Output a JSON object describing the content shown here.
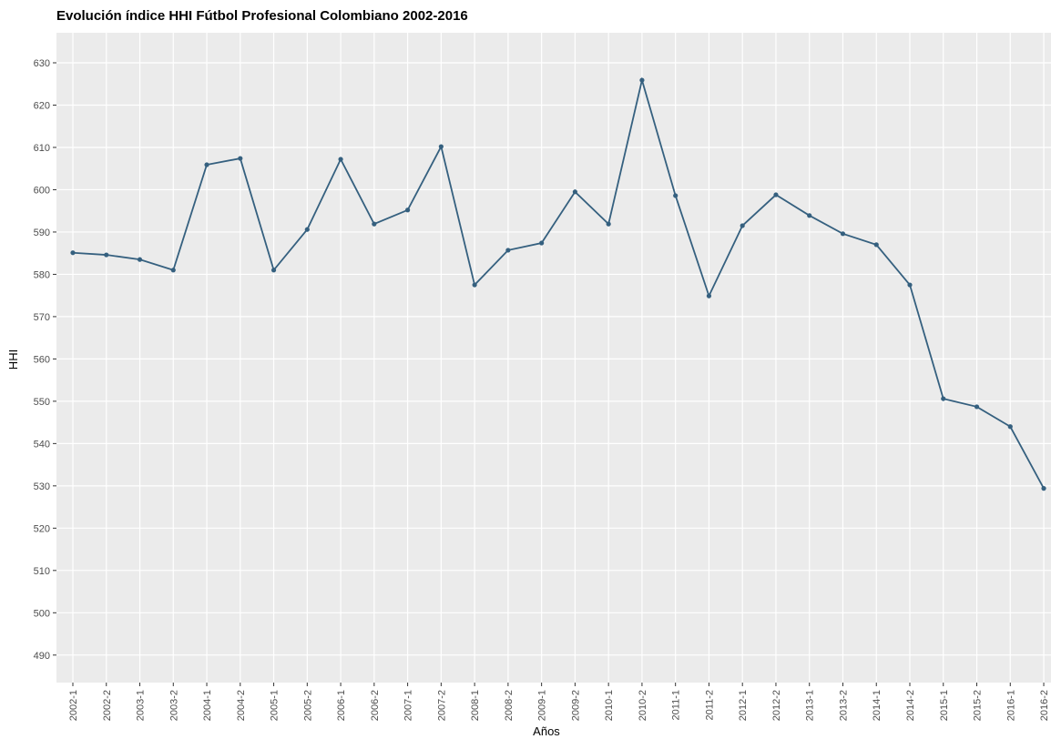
{
  "chart_data": {
    "type": "line",
    "title": "Evolución índice HHI Fútbol Profesional Colombiano 2002-2016",
    "x_label": "Años",
    "y_label": "HHI",
    "categories": [
      "2002-1",
      "2002-2",
      "2003-1",
      "2003-2",
      "2004-1",
      "2004-2",
      "2005-1",
      "2005-2",
      "2006-1",
      "2006-2",
      "2007-1",
      "2007-2",
      "2008-1",
      "2008-2",
      "2009-1",
      "2009-2",
      "2010-1",
      "2010-2",
      "2011-1",
      "2011-2",
      "2012-1",
      "2012-2",
      "2013-1",
      "2013-2",
      "2014-1",
      "2014-2",
      "2015-1",
      "2015-2",
      "2016-1",
      "2016-2"
    ],
    "series": [
      {
        "name": "HHI",
        "color": "#35607f",
        "values": [
          585.1,
          584.6,
          583.5,
          581,
          605.9,
          607.4,
          581,
          590.6,
          607.2,
          591.9,
          595.2,
          610.2,
          577.5,
          585.7,
          587.4,
          599.5,
          591.9,
          625.9,
          598.6,
          574.9,
          591.5,
          598.8,
          593.9,
          589.6,
          587,
          577.5,
          550.6,
          548.7,
          544,
          529.4
        ]
      }
    ],
    "ylim": [
      483.5,
      637.1
    ],
    "yticks": [
      490,
      500,
      510,
      520,
      530,
      540,
      550,
      560,
      570,
      580,
      590,
      600,
      610,
      620,
      630
    ],
    "grid": true
  }
}
